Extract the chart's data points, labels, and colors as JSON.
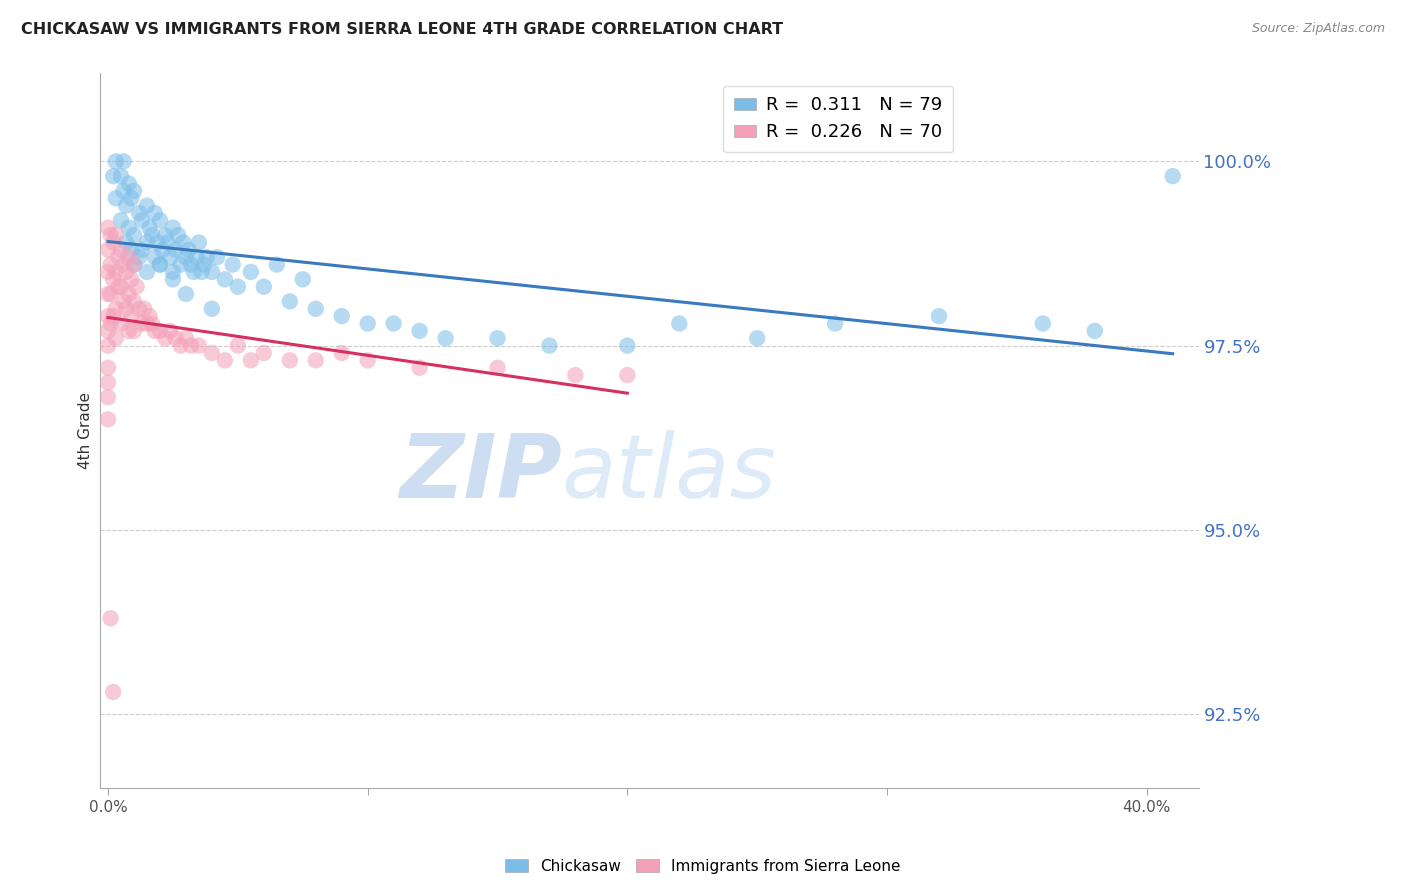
{
  "title": "CHICKASAW VS IMMIGRANTS FROM SIERRA LEONE 4TH GRADE CORRELATION CHART",
  "source": "Source: ZipAtlas.com",
  "ylabel": "4th Grade",
  "y_ticks": [
    92.5,
    95.0,
    97.5,
    100.0
  ],
  "y_min": 91.5,
  "y_max": 101.2,
  "x_min": -0.003,
  "x_max": 0.42,
  "legend_blue_r": "0.311",
  "legend_blue_n": "79",
  "legend_pink_r": "0.226",
  "legend_pink_n": "70",
  "legend_label_blue": "Chickasaw",
  "legend_label_pink": "Immigrants from Sierra Leone",
  "blue_color": "#7bbde8",
  "pink_color": "#f4a0b8",
  "trend_blue_color": "#3a7abf",
  "trend_pink_color": "#d63060",
  "watermark_zip": "ZIP",
  "watermark_atlas": "atlas",
  "blue_scatter_x": [
    0.002,
    0.003,
    0.003,
    0.005,
    0.005,
    0.006,
    0.006,
    0.007,
    0.007,
    0.008,
    0.008,
    0.009,
    0.009,
    0.01,
    0.01,
    0.01,
    0.012,
    0.012,
    0.013,
    0.013,
    0.015,
    0.015,
    0.015,
    0.016,
    0.017,
    0.018,
    0.018,
    0.019,
    0.02,
    0.02,
    0.021,
    0.022,
    0.023,
    0.024,
    0.025,
    0.025,
    0.026,
    0.027,
    0.028,
    0.029,
    0.03,
    0.031,
    0.032,
    0.033,
    0.034,
    0.035,
    0.036,
    0.037,
    0.038,
    0.04,
    0.042,
    0.045,
    0.048,
    0.05,
    0.055,
    0.06,
    0.065,
    0.07,
    0.075,
    0.08,
    0.09,
    0.1,
    0.11,
    0.12,
    0.13,
    0.15,
    0.17,
    0.2,
    0.22,
    0.25,
    0.28,
    0.32,
    0.36,
    0.38,
    0.41,
    0.02,
    0.025,
    0.03,
    0.04
  ],
  "blue_scatter_y": [
    99.8,
    100.0,
    99.5,
    99.8,
    99.2,
    100.0,
    99.6,
    99.4,
    98.9,
    99.7,
    99.1,
    99.5,
    98.8,
    99.6,
    99.0,
    98.6,
    99.3,
    98.7,
    99.2,
    98.8,
    99.4,
    98.9,
    98.5,
    99.1,
    99.0,
    99.3,
    98.7,
    98.9,
    99.2,
    98.6,
    98.8,
    99.0,
    98.9,
    98.7,
    99.1,
    98.5,
    98.8,
    99.0,
    98.6,
    98.9,
    98.7,
    98.8,
    98.6,
    98.5,
    98.7,
    98.9,
    98.5,
    98.6,
    98.7,
    98.5,
    98.7,
    98.4,
    98.6,
    98.3,
    98.5,
    98.3,
    98.6,
    98.1,
    98.4,
    98.0,
    97.9,
    97.8,
    97.8,
    97.7,
    97.6,
    97.6,
    97.5,
    97.5,
    97.8,
    97.6,
    97.8,
    97.9,
    97.8,
    97.7,
    99.8,
    98.6,
    98.4,
    98.2,
    98.0
  ],
  "pink_scatter_x": [
    0.0,
    0.0,
    0.0,
    0.0,
    0.0,
    0.0,
    0.0,
    0.0,
    0.0,
    0.0,
    0.0,
    0.001,
    0.001,
    0.001,
    0.001,
    0.002,
    0.002,
    0.002,
    0.003,
    0.003,
    0.003,
    0.003,
    0.004,
    0.004,
    0.005,
    0.005,
    0.005,
    0.006,
    0.006,
    0.007,
    0.007,
    0.008,
    0.008,
    0.008,
    0.009,
    0.009,
    0.01,
    0.01,
    0.01,
    0.011,
    0.012,
    0.013,
    0.014,
    0.015,
    0.016,
    0.017,
    0.018,
    0.02,
    0.022,
    0.024,
    0.026,
    0.028,
    0.03,
    0.032,
    0.035,
    0.04,
    0.045,
    0.05,
    0.055,
    0.06,
    0.07,
    0.08,
    0.09,
    0.1,
    0.12,
    0.15,
    0.18,
    0.2,
    0.001,
    0.002
  ],
  "pink_scatter_y": [
    99.1,
    98.8,
    98.5,
    98.2,
    97.9,
    97.7,
    97.5,
    97.2,
    97.0,
    96.8,
    96.5,
    99.0,
    98.6,
    98.2,
    97.8,
    98.9,
    98.4,
    97.9,
    99.0,
    98.5,
    98.0,
    97.6,
    98.7,
    98.3,
    98.8,
    98.3,
    97.8,
    98.6,
    98.1,
    98.5,
    98.0,
    98.7,
    98.2,
    97.7,
    98.4,
    97.9,
    98.6,
    98.1,
    97.7,
    98.3,
    98.0,
    97.8,
    98.0,
    97.8,
    97.9,
    97.8,
    97.7,
    97.7,
    97.6,
    97.7,
    97.6,
    97.5,
    97.6,
    97.5,
    97.5,
    97.4,
    97.3,
    97.5,
    97.3,
    97.4,
    97.3,
    97.3,
    97.4,
    97.3,
    97.2,
    97.2,
    97.1,
    97.1,
    93.8,
    92.8
  ]
}
